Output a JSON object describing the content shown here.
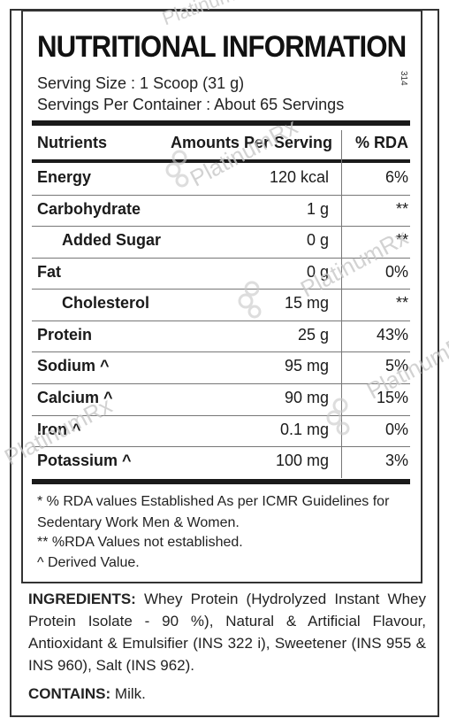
{
  "title": "NUTRITIONAL INFORMATION",
  "serving_size": "Serving Size : 1 Scoop (31 g)",
  "servings_per_container": "Servings Per Container : About 65 Servings",
  "side_code": "314",
  "table": {
    "headers": [
      "Nutrients",
      "Amounts Per Serving",
      "% RDA"
    ],
    "rows": [
      {
        "nutrient": "Energy",
        "amount": "120 kcal",
        "rda": "6%"
      },
      {
        "nutrient": "Carbohydrate",
        "amount": "1 g",
        "rda": "**"
      },
      {
        "nutrient": "Added Sugar",
        "amount": "0 g",
        "rda": "**"
      },
      {
        "nutrient": "Fat",
        "amount": "0 g",
        "rda": "0%"
      },
      {
        "nutrient": "Cholesterol",
        "amount": "15 mg",
        "rda": "**"
      },
      {
        "nutrient": "Protein",
        "amount": "25 g",
        "rda": "43%"
      },
      {
        "nutrient": "Sodium ^",
        "amount": "95 mg",
        "rda": "5%"
      },
      {
        "nutrient": "Calcium ^",
        "amount": "90 mg",
        "rda": "15%"
      },
      {
        "nutrient": "Iron ^",
        "amount": "0.1 mg",
        "rda": "0%"
      },
      {
        "nutrient": "Potassium ^",
        "amount": "100 mg",
        "rda": "3%"
      }
    ]
  },
  "footnotes": [
    "* % RDA values Established As per ICMR Guidelines for",
    "Sedentary Work Men & Women.",
    "** %RDA Values not established.",
    "^ Derived Value."
  ],
  "ingredients": {
    "label": "INGREDIENTS:",
    "text": "Whey Protein (Hydrolyzed Instant Whey Protein Isolate - 90 %), Natural & Artificial Flavour, Antioxidant & Emulsifier (INS 322 i), Sweetener (INS 955 & INS 960), Salt (INS 962)."
  },
  "contains": {
    "label": "CONTAINS:",
    "text": "Milk."
  },
  "watermark": {
    "text": "PlatinumRx",
    "color": "#c8c8c8"
  }
}
